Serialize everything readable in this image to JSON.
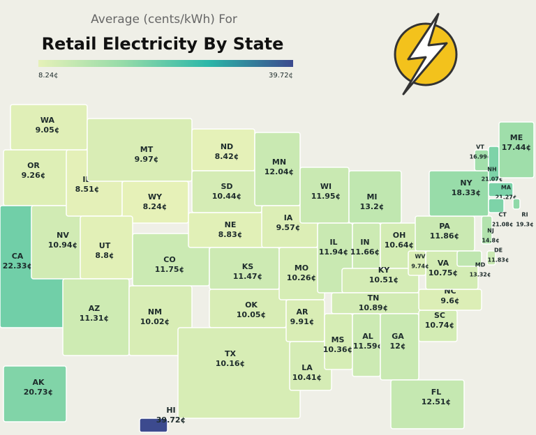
{
  "header": {
    "subtitle": "Average (cents/kWh) For",
    "title": "Retail Electricity By State"
  },
  "scale": {
    "min": {
      "value": 8.24,
      "label": "8.24¢"
    },
    "max": {
      "value": 39.72,
      "label": "39.72¢"
    },
    "colors": [
      "#e6f1b8",
      "#95dba8",
      "#2bb7a8",
      "#3c4a8e"
    ]
  },
  "states": [
    {
      "code": "WA",
      "value": 9.05,
      "value_label": "9.05¢"
    },
    {
      "code": "OR",
      "value": 9.26,
      "value_label": "9.26¢"
    },
    {
      "code": "CA",
      "value": 22.33,
      "value_label": "22.33¢"
    },
    {
      "code": "NV",
      "value": 10.94,
      "value_label": "10.94¢"
    },
    {
      "code": "ID",
      "value": 8.51,
      "value_label": "8.51¢"
    },
    {
      "code": "MT",
      "value": 9.97,
      "value_label": "9.97¢"
    },
    {
      "code": "WY",
      "value": 8.24,
      "value_label": "8.24¢"
    },
    {
      "code": "UT",
      "value": 8.8,
      "value_label": "8.8¢"
    },
    {
      "code": "CO",
      "value": 11.75,
      "value_label": "11.75¢"
    },
    {
      "code": "AZ",
      "value": 11.31,
      "value_label": "11.31¢"
    },
    {
      "code": "NM",
      "value": 10.02,
      "value_label": "10.02¢"
    },
    {
      "code": "ND",
      "value": 8.42,
      "value_label": "8.42¢"
    },
    {
      "code": "SD",
      "value": 10.44,
      "value_label": "10.44¢"
    },
    {
      "code": "NE",
      "value": 8.83,
      "value_label": "8.83¢"
    },
    {
      "code": "KS",
      "value": 11.47,
      "value_label": "11.47¢"
    },
    {
      "code": "OK",
      "value": 10.05,
      "value_label": "10.05¢"
    },
    {
      "code": "TX",
      "value": 10.16,
      "value_label": "10.16¢"
    },
    {
      "code": "MN",
      "value": 12.04,
      "value_label": "12.04¢"
    },
    {
      "code": "IA",
      "value": 9.57,
      "value_label": "9.57¢"
    },
    {
      "code": "MO",
      "value": 10.26,
      "value_label": "10.26¢"
    },
    {
      "code": "AR",
      "value": 9.91,
      "value_label": "9.91¢"
    },
    {
      "code": "LA",
      "value": 10.41,
      "value_label": "10.41¢"
    },
    {
      "code": "WI",
      "value": 11.95,
      "value_label": "11.95¢"
    },
    {
      "code": "IL",
      "value": 11.94,
      "value_label": "11.94¢"
    },
    {
      "code": "MI",
      "value": 13.2,
      "value_label": "13.2¢"
    },
    {
      "code": "IN",
      "value": 11.66,
      "value_label": "11.66¢"
    },
    {
      "code": "OH",
      "value": 10.64,
      "value_label": "10.64¢"
    },
    {
      "code": "KY",
      "value": 10.51,
      "value_label": "10.51¢"
    },
    {
      "code": "TN",
      "value": 10.89,
      "value_label": "10.89¢"
    },
    {
      "code": "MS",
      "value": 10.36,
      "value_label": "10.36¢"
    },
    {
      "code": "AL",
      "value": 11.59,
      "value_label": "11.59¢"
    },
    {
      "code": "GA",
      "value": 12,
      "value_label": "12¢"
    },
    {
      "code": "FL",
      "value": 12.51,
      "value_label": "12.51¢"
    },
    {
      "code": "SC",
      "value": 10.74,
      "value_label": "10.74¢"
    },
    {
      "code": "NC",
      "value": 9.6,
      "value_label": "9.6¢"
    },
    {
      "code": "VA",
      "value": 10.75,
      "value_label": "10.75¢"
    },
    {
      "code": "WV",
      "value": 9.74,
      "value_label": "9.74¢"
    },
    {
      "code": "PA",
      "value": 11.86,
      "value_label": "11.86¢"
    },
    {
      "code": "NY",
      "value": 18.33,
      "value_label": "18.33¢"
    },
    {
      "code": "VT",
      "value": 16.99,
      "value_label": "16.99¢"
    },
    {
      "code": "NH",
      "value": 21.07,
      "value_label": "21.07¢"
    },
    {
      "code": "ME",
      "value": 17.44,
      "value_label": "17.44¢"
    },
    {
      "code": "MA",
      "value": 21.27,
      "value_label": "21.27¢"
    },
    {
      "code": "RI",
      "value": 19.3,
      "value_label": "19.3¢"
    },
    {
      "code": "CT",
      "value": 21.08,
      "value_label": "21.08¢"
    },
    {
      "code": "NJ",
      "value": 14.8,
      "value_label": "14.8¢"
    },
    {
      "code": "DE",
      "value": 11.83,
      "value_label": "11.83¢"
    },
    {
      "code": "MD",
      "value": 13.32,
      "value_label": "13.32¢"
    },
    {
      "code": "AK",
      "value": 20.73,
      "value_label": "20.73¢"
    },
    {
      "code": "HI",
      "value": 39.72,
      "value_label": "39.72¢"
    }
  ]
}
